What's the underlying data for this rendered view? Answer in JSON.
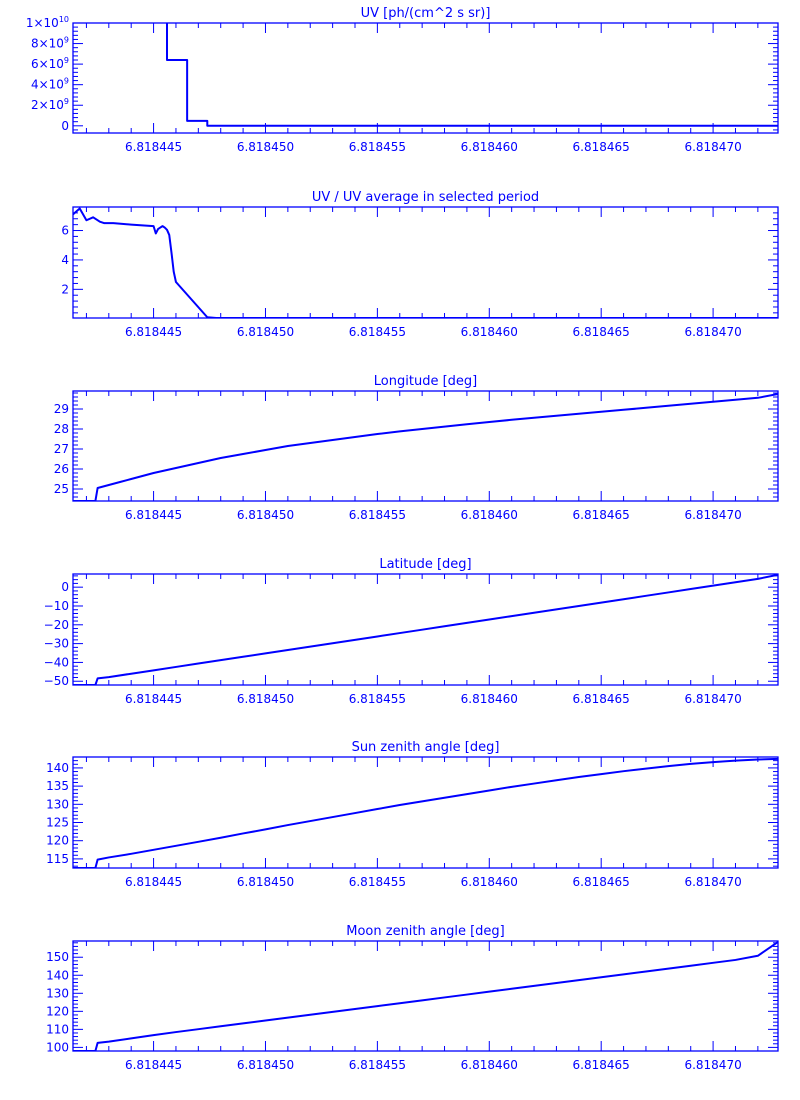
{
  "colors": {
    "ink": "#0000ff",
    "background": "#ffffff"
  },
  "chart_data": [
    {
      "type": "line",
      "title": "UV [ph/(cm^2 s sr)]",
      "xlabel": "",
      "ylabel": "",
      "xlim": [
        6.8184414,
        6.8184729
      ],
      "ylim": [
        -700000000.0,
        10000000000.0
      ],
      "grid": false,
      "step": true,
      "x_ticks": [
        {
          "value": 6.818445,
          "label": "6.818445"
        },
        {
          "value": 6.81845,
          "label": "6.818450"
        },
        {
          "value": 6.818455,
          "label": "6.818455"
        },
        {
          "value": 6.81846,
          "label": "6.818460"
        },
        {
          "value": 6.818465,
          "label": "6.818465"
        },
        {
          "value": 6.81847,
          "label": "6.818470"
        }
      ],
      "y_ticks": [
        {
          "value": 0,
          "base": "0",
          "exp": ""
        },
        {
          "value": 2000000000.0,
          "base": "2×10",
          "exp": "9"
        },
        {
          "value": 4000000000.0,
          "base": "4×10",
          "exp": "9"
        },
        {
          "value": 6000000000.0,
          "base": "6×10",
          "exp": "9"
        },
        {
          "value": 8000000000.0,
          "base": "8×10",
          "exp": "9"
        },
        {
          "value": 10000000000.0,
          "base": "1×10",
          "exp": "10"
        }
      ],
      "series": [
        {
          "x": [
            6.8184456,
            6.8184456,
            6.8184465,
            6.8184465,
            6.8184474,
            6.8184474,
            6.8184729
          ],
          "y": [
            10500000000.0,
            6400000000.0,
            6400000000.0,
            480000000.0,
            480000000.0,
            0,
            0
          ]
        }
      ]
    },
    {
      "type": "line",
      "title": "UV / UV average in selected period",
      "xlabel": "",
      "ylabel": "",
      "xlim": [
        6.8184414,
        6.8184729
      ],
      "ylim": [
        0.05,
        7.6
      ],
      "grid": false,
      "x_ticks": [
        {
          "value": 6.818445,
          "label": "6.818445"
        },
        {
          "value": 6.81845,
          "label": "6.818450"
        },
        {
          "value": 6.818455,
          "label": "6.818455"
        },
        {
          "value": 6.81846,
          "label": "6.818460"
        },
        {
          "value": 6.818465,
          "label": "6.818465"
        },
        {
          "value": 6.81847,
          "label": "6.818470"
        }
      ],
      "y_ticks": [
        {
          "value": 2,
          "base": "2",
          "exp": ""
        },
        {
          "value": 4,
          "base": "4",
          "exp": ""
        },
        {
          "value": 6,
          "base": "6",
          "exp": ""
        }
      ],
      "series": [
        {
          "x": [
            6.8184414,
            6.8184417,
            6.818442,
            6.8184423,
            6.8184426,
            6.8184428,
            6.8184432,
            6.8184436,
            6.818444,
            6.8184445,
            6.818445,
            6.8184451,
            6.8184452,
            6.8184453,
            6.8184454,
            6.8184455,
            6.8184456,
            6.8184457,
            6.8184458,
            6.8184459,
            6.818446,
            6.8184474,
            6.8184478,
            6.8184729
          ],
          "y": [
            7.1,
            7.5,
            6.7,
            6.9,
            6.6,
            6.5,
            6.5,
            6.45,
            6.4,
            6.35,
            6.3,
            5.8,
            6.1,
            6.2,
            6.3,
            6.2,
            6.05,
            5.7,
            4.5,
            3.2,
            2.5,
            0.1,
            0.05,
            0.05
          ]
        }
      ]
    },
    {
      "type": "line",
      "title": "Longitude [deg]",
      "xlabel": "",
      "ylabel": "",
      "xlim": [
        6.8184414,
        6.8184729
      ],
      "ylim": [
        24.4,
        29.9
      ],
      "grid": false,
      "x_ticks": [
        {
          "value": 6.818445,
          "label": "6.818445"
        },
        {
          "value": 6.81845,
          "label": "6.818450"
        },
        {
          "value": 6.818455,
          "label": "6.818455"
        },
        {
          "value": 6.81846,
          "label": "6.818460"
        },
        {
          "value": 6.818465,
          "label": "6.818465"
        },
        {
          "value": 6.81847,
          "label": "6.818470"
        }
      ],
      "y_ticks": [
        {
          "value": 25,
          "base": "25",
          "exp": ""
        },
        {
          "value": 26,
          "base": "26",
          "exp": ""
        },
        {
          "value": 27,
          "base": "27",
          "exp": ""
        },
        {
          "value": 28,
          "base": "28",
          "exp": ""
        },
        {
          "value": 29,
          "base": "29",
          "exp": ""
        }
      ],
      "series": [
        {
          "x": [
            6.8184414,
            6.8184424,
            6.8184425,
            6.818443,
            6.8184435,
            6.818444,
            6.8184445,
            6.818445,
            6.818446,
            6.818447,
            6.818448,
            6.818449,
            6.81845,
            6.818451,
            6.818452,
            6.818453,
            6.818454,
            6.818455,
            6.818456,
            6.818457,
            6.818458,
            6.818459,
            6.81846,
            6.818461,
            6.818462,
            6.818463,
            6.818464,
            6.818465,
            6.818466,
            6.818467,
            6.818468,
            6.818469,
            6.81847,
            6.818471,
            6.818472,
            6.8184729
          ],
          "y": [
            24.4,
            24.4,
            25.05,
            25.2,
            25.35,
            25.5,
            25.65,
            25.8,
            26.05,
            26.3,
            26.55,
            26.75,
            26.95,
            27.15,
            27.3,
            27.45,
            27.6,
            27.75,
            27.88,
            28.0,
            28.12,
            28.24,
            28.35,
            28.46,
            28.56,
            28.66,
            28.76,
            28.86,
            28.96,
            29.06,
            29.16,
            29.26,
            29.36,
            29.46,
            29.56,
            29.75
          ]
        }
      ]
    },
    {
      "type": "line",
      "title": "Latitude [deg]",
      "xlabel": "",
      "ylabel": "",
      "xlim": [
        6.8184414,
        6.8184729
      ],
      "ylim": [
        -52,
        7
      ],
      "grid": false,
      "x_ticks": [
        {
          "value": 6.818445,
          "label": "6.818445"
        },
        {
          "value": 6.81845,
          "label": "6.818450"
        },
        {
          "value": 6.818455,
          "label": "6.818455"
        },
        {
          "value": 6.81846,
          "label": "6.818460"
        },
        {
          "value": 6.818465,
          "label": "6.818465"
        },
        {
          "value": 6.81847,
          "label": "6.818470"
        }
      ],
      "y_ticks": [
        {
          "value": -50,
          "base": "−50",
          "exp": ""
        },
        {
          "value": -40,
          "base": "−40",
          "exp": ""
        },
        {
          "value": -30,
          "base": "−30",
          "exp": ""
        },
        {
          "value": -20,
          "base": "−20",
          "exp": ""
        },
        {
          "value": -10,
          "base": "−10",
          "exp": ""
        },
        {
          "value": 0,
          "base": "0",
          "exp": ""
        }
      ],
      "series": [
        {
          "x": [
            6.8184414,
            6.8184424,
            6.8184425,
            6.818443,
            6.818444,
            6.818445,
            6.818446,
            6.818447,
            6.818448,
            6.818449,
            6.81845,
            6.818451,
            6.818452,
            6.818453,
            6.818454,
            6.818455,
            6.818456,
            6.818457,
            6.818458,
            6.818459,
            6.81846,
            6.818461,
            6.818462,
            6.818463,
            6.818464,
            6.818465,
            6.818466,
            6.818467,
            6.818468,
            6.818469,
            6.81847,
            6.818471,
            6.818472,
            6.8184729
          ],
          "y": [
            -52,
            -52,
            -48.5,
            -47.8,
            -46.0,
            -44.2,
            -42.4,
            -40.6,
            -38.8,
            -37.0,
            -35.2,
            -33.4,
            -31.6,
            -29.8,
            -28.0,
            -26.2,
            -24.4,
            -22.6,
            -20.8,
            -19.0,
            -17.2,
            -15.4,
            -13.6,
            -11.8,
            -10.0,
            -8.2,
            -6.4,
            -4.6,
            -2.8,
            -1.0,
            0.8,
            2.6,
            4.4,
            6.6
          ]
        }
      ]
    },
    {
      "type": "line",
      "title": "Sun zenith angle [deg]",
      "xlabel": "",
      "ylabel": "",
      "xlim": [
        6.8184414,
        6.8184729
      ],
      "ylim": [
        112.5,
        143
      ],
      "grid": false,
      "x_ticks": [
        {
          "value": 6.818445,
          "label": "6.818445"
        },
        {
          "value": 6.81845,
          "label": "6.818450"
        },
        {
          "value": 6.818455,
          "label": "6.818455"
        },
        {
          "value": 6.81846,
          "label": "6.818460"
        },
        {
          "value": 6.818465,
          "label": "6.818465"
        },
        {
          "value": 6.81847,
          "label": "6.818470"
        }
      ],
      "y_ticks": [
        {
          "value": 115,
          "base": "115",
          "exp": ""
        },
        {
          "value": 120,
          "base": "120",
          "exp": ""
        },
        {
          "value": 125,
          "base": "125",
          "exp": ""
        },
        {
          "value": 130,
          "base": "130",
          "exp": ""
        },
        {
          "value": 135,
          "base": "135",
          "exp": ""
        },
        {
          "value": 140,
          "base": "140",
          "exp": ""
        }
      ],
      "series": [
        {
          "x": [
            6.8184414,
            6.8184424,
            6.8184425,
            6.818443,
            6.818444,
            6.818445,
            6.818446,
            6.818447,
            6.818448,
            6.818449,
            6.81845,
            6.818451,
            6.818452,
            6.818453,
            6.818454,
            6.818455,
            6.818456,
            6.818457,
            6.818458,
            6.818459,
            6.81846,
            6.818461,
            6.818462,
            6.818463,
            6.818464,
            6.818465,
            6.818466,
            6.818467,
            6.818468,
            6.818469,
            6.81847,
            6.818471,
            6.818472,
            6.8184729
          ],
          "y": [
            112.5,
            112.5,
            114.8,
            115.4,
            116.4,
            117.5,
            118.6,
            119.7,
            120.8,
            122.0,
            123.1,
            124.3,
            125.4,
            126.5,
            127.6,
            128.7,
            129.8,
            130.8,
            131.8,
            132.8,
            133.8,
            134.8,
            135.7,
            136.6,
            137.5,
            138.3,
            139.1,
            139.8,
            140.5,
            141.1,
            141.6,
            142.0,
            142.3,
            142.5
          ]
        }
      ]
    },
    {
      "type": "line",
      "title": "Moon zenith angle [deg]",
      "xlabel": "",
      "ylabel": "",
      "xlim": [
        6.8184414,
        6.8184729
      ],
      "ylim": [
        98,
        159
      ],
      "grid": false,
      "x_ticks": [
        {
          "value": 6.818445,
          "label": "6.818445"
        },
        {
          "value": 6.81845,
          "label": "6.818450"
        },
        {
          "value": 6.818455,
          "label": "6.818455"
        },
        {
          "value": 6.81846,
          "label": "6.818460"
        },
        {
          "value": 6.818465,
          "label": "6.818465"
        },
        {
          "value": 6.81847,
          "label": "6.818470"
        }
      ],
      "y_ticks": [
        {
          "value": 100,
          "base": "100",
          "exp": ""
        },
        {
          "value": 110,
          "base": "110",
          "exp": ""
        },
        {
          "value": 120,
          "base": "120",
          "exp": ""
        },
        {
          "value": 130,
          "base": "130",
          "exp": ""
        },
        {
          "value": 140,
          "base": "140",
          "exp": ""
        },
        {
          "value": 150,
          "base": "150",
          "exp": ""
        }
      ],
      "series": [
        {
          "x": [
            6.8184414,
            6.8184424,
            6.8184425,
            6.818443,
            6.818444,
            6.818445,
            6.818446,
            6.818447,
            6.818448,
            6.818449,
            6.81845,
            6.818451,
            6.818452,
            6.818453,
            6.818454,
            6.818455,
            6.818456,
            6.818457,
            6.818458,
            6.818459,
            6.81846,
            6.818461,
            6.818462,
            6.818463,
            6.818464,
            6.818465,
            6.818466,
            6.818467,
            6.818468,
            6.818469,
            6.81847,
            6.818471,
            6.818472,
            6.8184729
          ],
          "y": [
            98,
            98,
            102.5,
            103.2,
            105.0,
            106.8,
            108.5,
            110.1,
            111.7,
            113.3,
            114.9,
            116.5,
            118.1,
            119.7,
            121.3,
            122.9,
            124.5,
            126.1,
            127.7,
            129.3,
            130.9,
            132.5,
            134.1,
            135.7,
            137.3,
            138.9,
            140.5,
            142.1,
            143.7,
            145.3,
            146.9,
            148.5,
            150.8,
            158.5
          ]
        }
      ]
    }
  ]
}
